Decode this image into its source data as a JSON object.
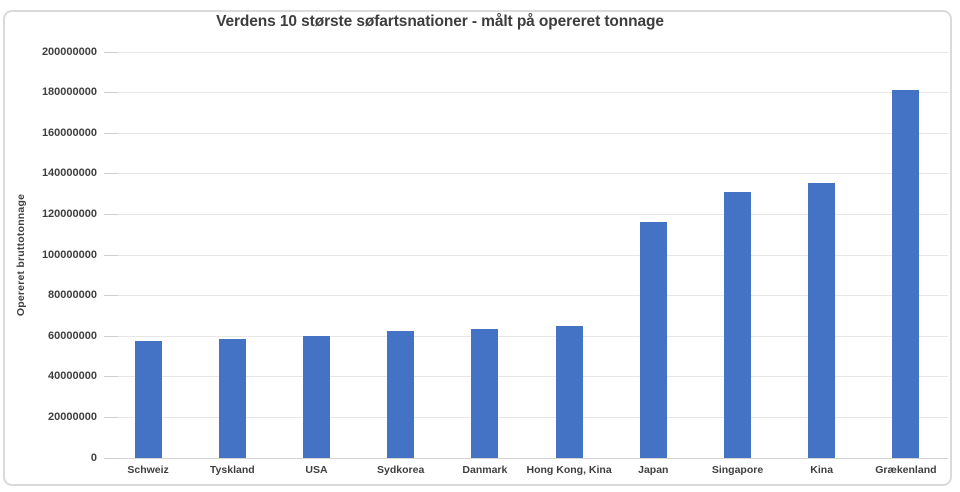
{
  "chart_data": {
    "type": "bar",
    "title": "Verdens 10 største søfartsnationer - målt på opereret tonnage",
    "xlabel": "",
    "ylabel": "Opereret bruttotonnage",
    "categories": [
      "Schweiz",
      "Tyskland",
      "USA",
      "Sydkorea",
      "Danmark",
      "Hong Kong, Kina",
      "Japan",
      "Singapore",
      "Kina",
      "Grækenland"
    ],
    "values": [
      57500000,
      58500000,
      60000000,
      62500000,
      63500000,
      65000000,
      116500000,
      131000000,
      135500000,
      181500000
    ],
    "ylim": [
      0,
      200000000
    ],
    "ytick_step": 20000000,
    "ytick_labels": [
      "0",
      "20000000",
      "40000000",
      "60000000",
      "80000000",
      "100000000",
      "120000000",
      "140000000",
      "160000000",
      "180000000",
      "200000000"
    ],
    "grid": true,
    "legend": "none",
    "bar_color": "#4472C4",
    "gridline_color": "#E7E7E7",
    "axis_line_color": "#D2D2D2",
    "tick_color": "#CFCFCF",
    "text_color": "#3F3F3F",
    "frame_border_color": "#DADADA",
    "background": "#FFFFFF"
  }
}
